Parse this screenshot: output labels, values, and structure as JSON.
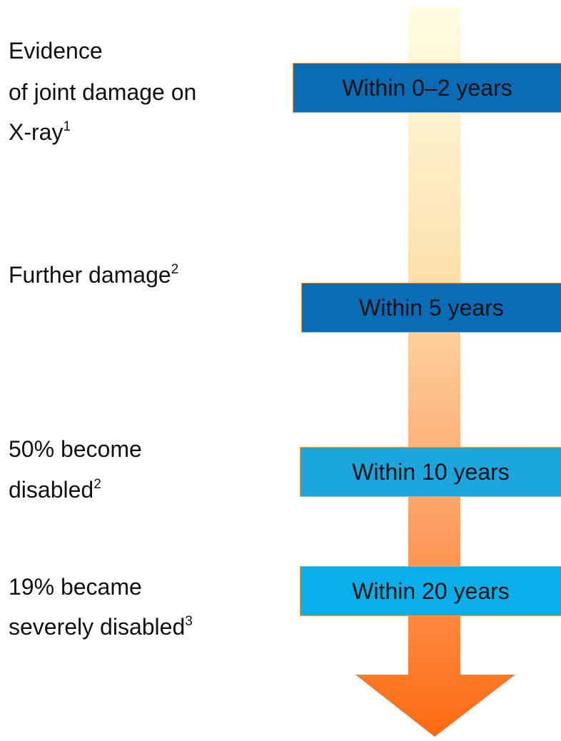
{
  "items": [
    {
      "label": [
        "Evidence",
        "of joint damage on",
        "X-ray"
      ],
      "sup": "1",
      "box": "Within 0–2 years"
    },
    {
      "label": [
        "Further damage"
      ],
      "sup": "2",
      "box": "Within 5 years"
    },
    {
      "label": [
        "50% become",
        "disabled"
      ],
      "sup": "2",
      "box": "Within 10 years"
    },
    {
      "label": [
        "19% became",
        "severely disabled"
      ],
      "sup": "3",
      "box": "Within 20 years"
    }
  ]
}
